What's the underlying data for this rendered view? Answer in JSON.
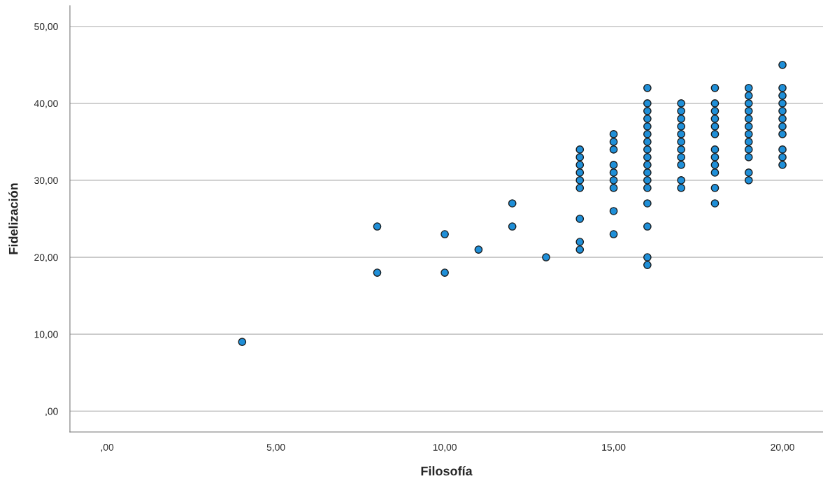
{
  "chart_data": {
    "type": "scatter",
    "xlabel": "Filosofía",
    "ylabel": "Fidelización",
    "x": [
      4,
      8,
      8,
      10,
      10,
      11,
      12,
      12,
      13,
      14,
      14,
      14,
      14,
      14,
      14,
      14,
      14,
      14,
      15,
      15,
      15,
      15,
      15,
      15,
      15,
      15,
      15,
      16,
      16,
      16,
      16,
      16,
      16,
      16,
      16,
      16,
      16,
      16,
      16,
      16,
      16,
      16,
      16,
      16,
      17,
      17,
      17,
      17,
      17,
      17,
      17,
      17,
      17,
      17,
      17,
      18,
      18,
      18,
      18,
      18,
      18,
      18,
      18,
      18,
      18,
      18,
      18,
      19,
      19,
      19,
      19,
      19,
      19,
      19,
      19,
      19,
      19,
      19,
      19,
      20,
      20,
      20,
      20,
      20,
      20,
      20,
      20,
      20,
      20,
      20
    ],
    "series": [
      {
        "color": "#1f8fd8",
        "values": [
          9,
          24,
          18,
          23,
          18,
          21,
          27,
          24,
          20,
          34,
          33,
          32,
          31,
          30,
          29,
          25,
          22,
          21,
          36,
          35,
          34,
          32,
          31,
          30,
          29,
          26,
          23,
          42,
          40,
          39,
          38,
          37,
          36,
          35,
          34,
          33,
          32,
          31,
          30,
          29,
          27,
          24,
          20,
          19,
          40,
          39,
          38,
          37,
          36,
          35,
          34,
          33,
          32,
          30,
          29,
          42,
          40,
          39,
          38,
          37,
          36,
          34,
          33,
          32,
          31,
          29,
          27,
          42,
          41,
          40,
          39,
          38,
          37,
          36,
          35,
          34,
          33,
          31,
          30,
          45,
          42,
          41,
          40,
          39,
          38,
          37,
          36,
          34,
          33,
          32
        ]
      }
    ],
    "xlim": [
      -1.1,
      21.2
    ],
    "ylim": [
      -2.7,
      52.7
    ],
    "xticks": [
      {
        "value": 0,
        "label": ",00"
      },
      {
        "value": 5,
        "label": "5,00"
      },
      {
        "value": 10,
        "label": "10,00"
      },
      {
        "value": 15,
        "label": "15,00"
      },
      {
        "value": 20,
        "label": "20,00"
      }
    ],
    "yticks": [
      {
        "value": 0,
        "label": ",00"
      },
      {
        "value": 10,
        "label": "10,00"
      },
      {
        "value": 20,
        "label": "20,00"
      },
      {
        "value": 30,
        "label": "30,00"
      },
      {
        "value": 40,
        "label": "40,00"
      },
      {
        "value": 50,
        "label": "50,00"
      }
    ],
    "grid": "y",
    "marker": "circle"
  }
}
